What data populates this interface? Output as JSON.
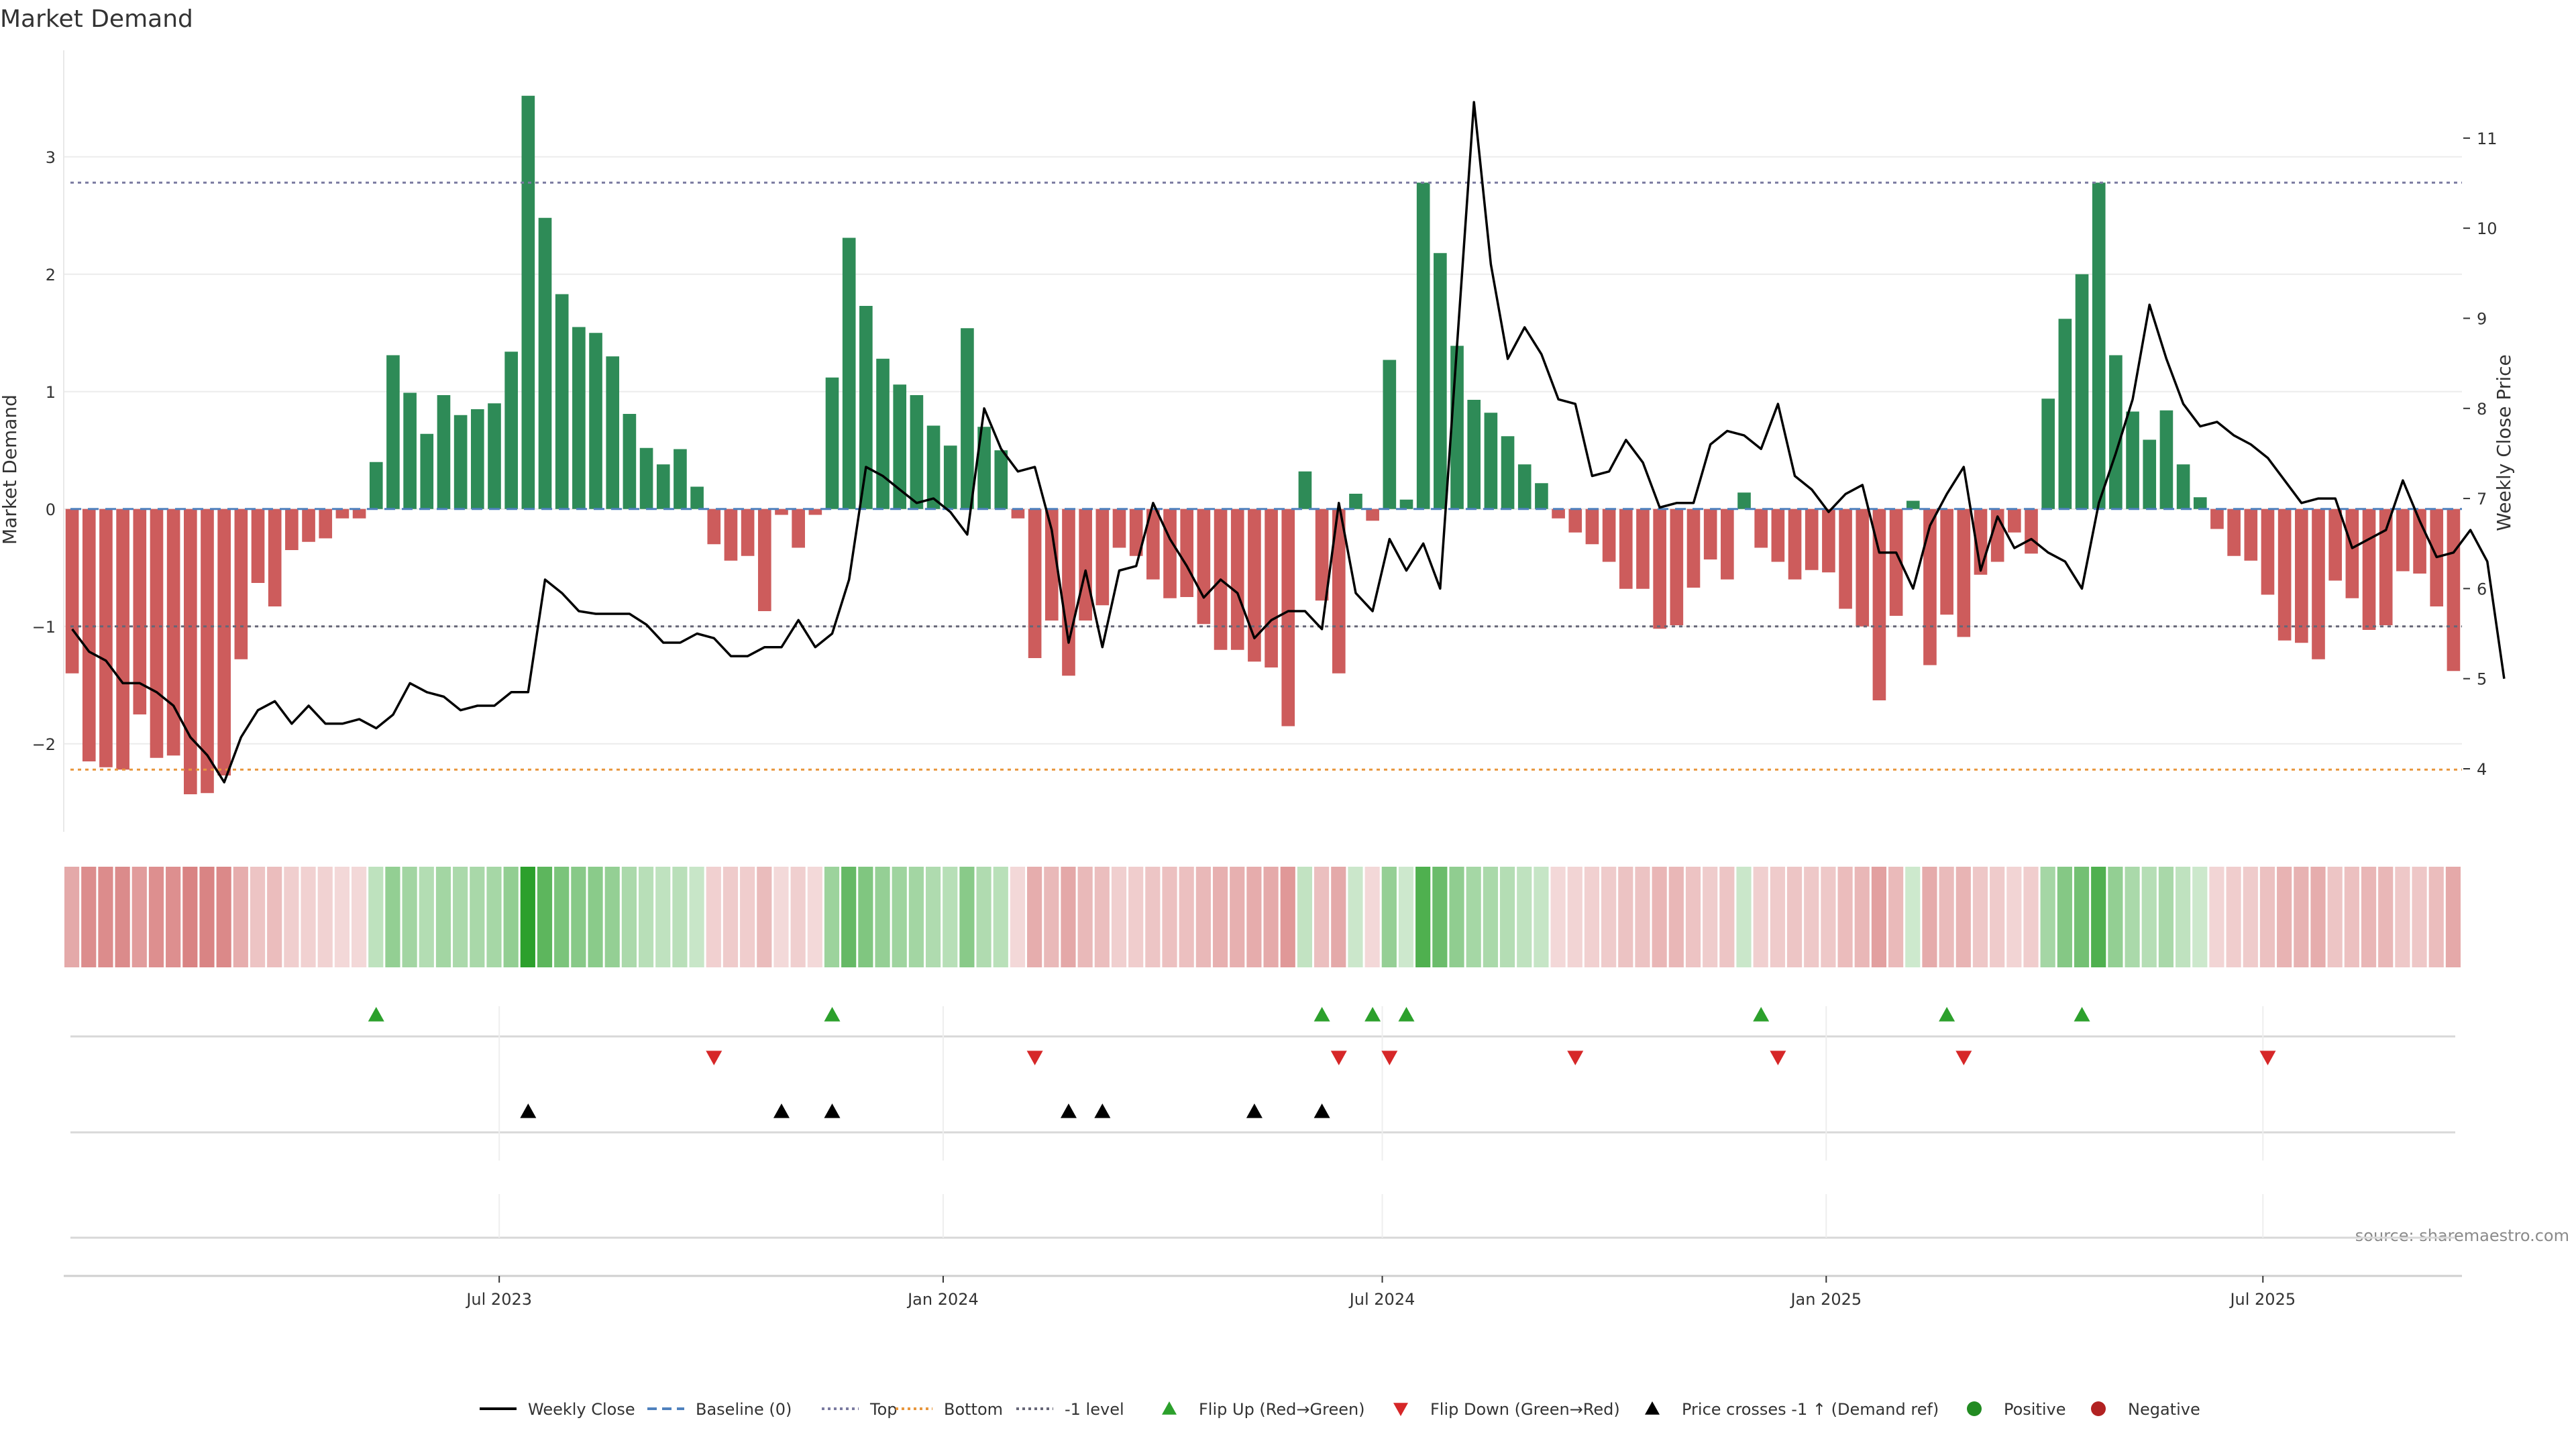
{
  "chart_data": {
    "type": "bar",
    "title": "Market Demand",
    "ylabel_left": "Market Demand",
    "ylabel_right": "Weekly Close Price",
    "source": "source: sharemaestro.com",
    "x_start": "2023-01-05",
    "x_step_days": 7,
    "x_ticks": [
      "Jul 2023",
      "Jan 2024",
      "Jul 2024",
      "Jan 2025",
      "Jul 2025"
    ],
    "y_left": {
      "lim": [
        -2.75,
        3.85
      ],
      "ticks": [
        "−2",
        "−1",
        "0",
        "1",
        "2",
        "3"
      ]
    },
    "y_right": {
      "lim": [
        3.3,
        11.9
      ],
      "ticks": [
        "4",
        "5",
        "6",
        "7",
        "8",
        "9",
        "10",
        "11"
      ]
    },
    "reference_lines": {
      "top": 2.78,
      "bottom": -2.22,
      "minus_one": -1.0,
      "baseline": 0
    },
    "colors": {
      "positive": "#2e8b57",
      "negative": "#cd5c5c",
      "price": "#000000",
      "top": "#7a7aa0",
      "bottom": "#e8963c",
      "baseline": "#4f81bd",
      "flip_up": "#2ca02c",
      "flip_down": "#d62728",
      "cross": "#000000"
    },
    "demand": [
      -1.4,
      -2.15,
      -2.2,
      -2.22,
      -1.75,
      -2.12,
      -2.1,
      -2.43,
      -2.42,
      -2.27,
      -1.28,
      -0.63,
      -0.83,
      -0.35,
      -0.28,
      -0.25,
      -0.08,
      -0.08,
      0.4,
      1.31,
      0.99,
      0.64,
      0.97,
      0.8,
      0.85,
      0.9,
      1.34,
      3.52,
      2.48,
      1.83,
      1.55,
      1.5,
      1.3,
      0.81,
      0.52,
      0.38,
      0.51,
      0.19,
      -0.3,
      -0.44,
      -0.4,
      -0.87,
      -0.05,
      -0.33,
      -0.05,
      1.12,
      2.31,
      1.73,
      1.28,
      1.06,
      0.97,
      0.71,
      0.54,
      1.54,
      0.7,
      0.5,
      -0.08,
      -1.27,
      -0.95,
      -1.42,
      -0.95,
      -0.82,
      -0.33,
      -0.4,
      -0.6,
      -0.76,
      -0.75,
      -0.98,
      -1.2,
      -1.2,
      -1.3,
      -1.35,
      -1.85,
      0.32,
      -0.78,
      -1.4,
      0.13,
      -0.1,
      1.27,
      0.08,
      2.78,
      2.18,
      1.39,
      0.93,
      0.82,
      0.62,
      0.38,
      0.22,
      -0.08,
      -0.2,
      -0.3,
      -0.45,
      -0.68,
      -0.68,
      -1.02,
      -0.99,
      -0.67,
      -0.43,
      -0.6,
      0.14,
      -0.33,
      -0.45,
      -0.6,
      -0.52,
      -0.54,
      -0.85,
      -1.0,
      -1.63,
      -0.91,
      0.07,
      -1.33,
      -0.9,
      -1.09,
      -0.56,
      -0.45,
      -0.2,
      -0.38,
      0.94,
      1.62,
      2.0,
      2.78,
      1.31,
      0.83,
      0.59,
      0.84,
      0.38,
      0.1,
      -0.17,
      -0.4,
      -0.44,
      -0.73,
      -1.12,
      -1.14,
      -1.28,
      -0.61,
      -0.76,
      -1.03,
      -0.99,
      -0.53,
      -0.55,
      -0.83,
      -1.38
    ],
    "price": [
      5.55,
      5.3,
      5.2,
      4.95,
      4.95,
      4.85,
      4.7,
      4.35,
      4.15,
      3.85,
      4.35,
      4.65,
      4.75,
      4.5,
      4.7,
      4.5,
      4.5,
      4.55,
      4.45,
      4.6,
      4.95,
      4.85,
      4.8,
      4.65,
      4.7,
      4.7,
      4.85,
      4.85,
      6.1,
      5.95,
      5.75,
      5.72,
      5.72,
      5.72,
      5.6,
      5.4,
      5.4,
      5.5,
      5.45,
      5.25,
      5.25,
      5.35,
      5.35,
      5.65,
      5.35,
      5.5,
      6.1,
      7.35,
      7.25,
      7.1,
      6.95,
      7.0,
      6.85,
      6.6,
      8.0,
      7.55,
      7.3,
      7.35,
      6.65,
      5.4,
      6.2,
      5.35,
      6.2,
      6.25,
      6.95,
      6.55,
      6.25,
      5.9,
      6.1,
      5.95,
      5.45,
      5.65,
      5.75,
      5.75,
      5.55,
      6.95,
      5.95,
      5.75,
      6.55,
      6.2,
      6.5,
      6.0,
      8.7,
      11.4,
      9.6,
      8.55,
      8.9,
      8.6,
      8.1,
      8.05,
      7.25,
      7.3,
      7.65,
      7.4,
      6.9,
      6.95,
      6.95,
      7.6,
      7.75,
      7.7,
      7.55,
      8.05,
      7.25,
      7.1,
      6.85,
      7.05,
      7.15,
      6.4,
      6.4,
      6.0,
      6.7,
      7.05,
      7.35,
      6.2,
      6.8,
      6.45,
      6.55,
      6.4,
      6.3,
      6.0,
      6.95,
      7.5,
      8.1,
      9.15,
      8.55,
      8.05,
      7.8,
      7.85,
      7.7,
      7.6,
      7.45,
      7.2,
      6.95,
      7.0,
      7.0,
      6.45,
      6.55,
      6.65,
      7.2,
      6.75,
      6.35,
      6.4,
      6.65,
      6.3,
      5.0
    ],
    "flip_up": [
      18,
      45,
      74,
      77,
      79,
      100,
      111,
      119
    ],
    "flip_down": [
      38,
      57,
      75,
      78,
      89,
      101,
      112,
      130
    ],
    "price_crosses": [
      27,
      42,
      45,
      59,
      61,
      70,
      74
    ],
    "legend": [
      "Weekly Close",
      "Baseline (0)",
      "Top",
      "Bottom",
      "-1 level",
      "Flip Up (Red→Green)",
      "Flip Down (Green→Red)",
      "Price crosses -1 ↑ (Demand ref)",
      "Positive",
      "Negative"
    ]
  }
}
